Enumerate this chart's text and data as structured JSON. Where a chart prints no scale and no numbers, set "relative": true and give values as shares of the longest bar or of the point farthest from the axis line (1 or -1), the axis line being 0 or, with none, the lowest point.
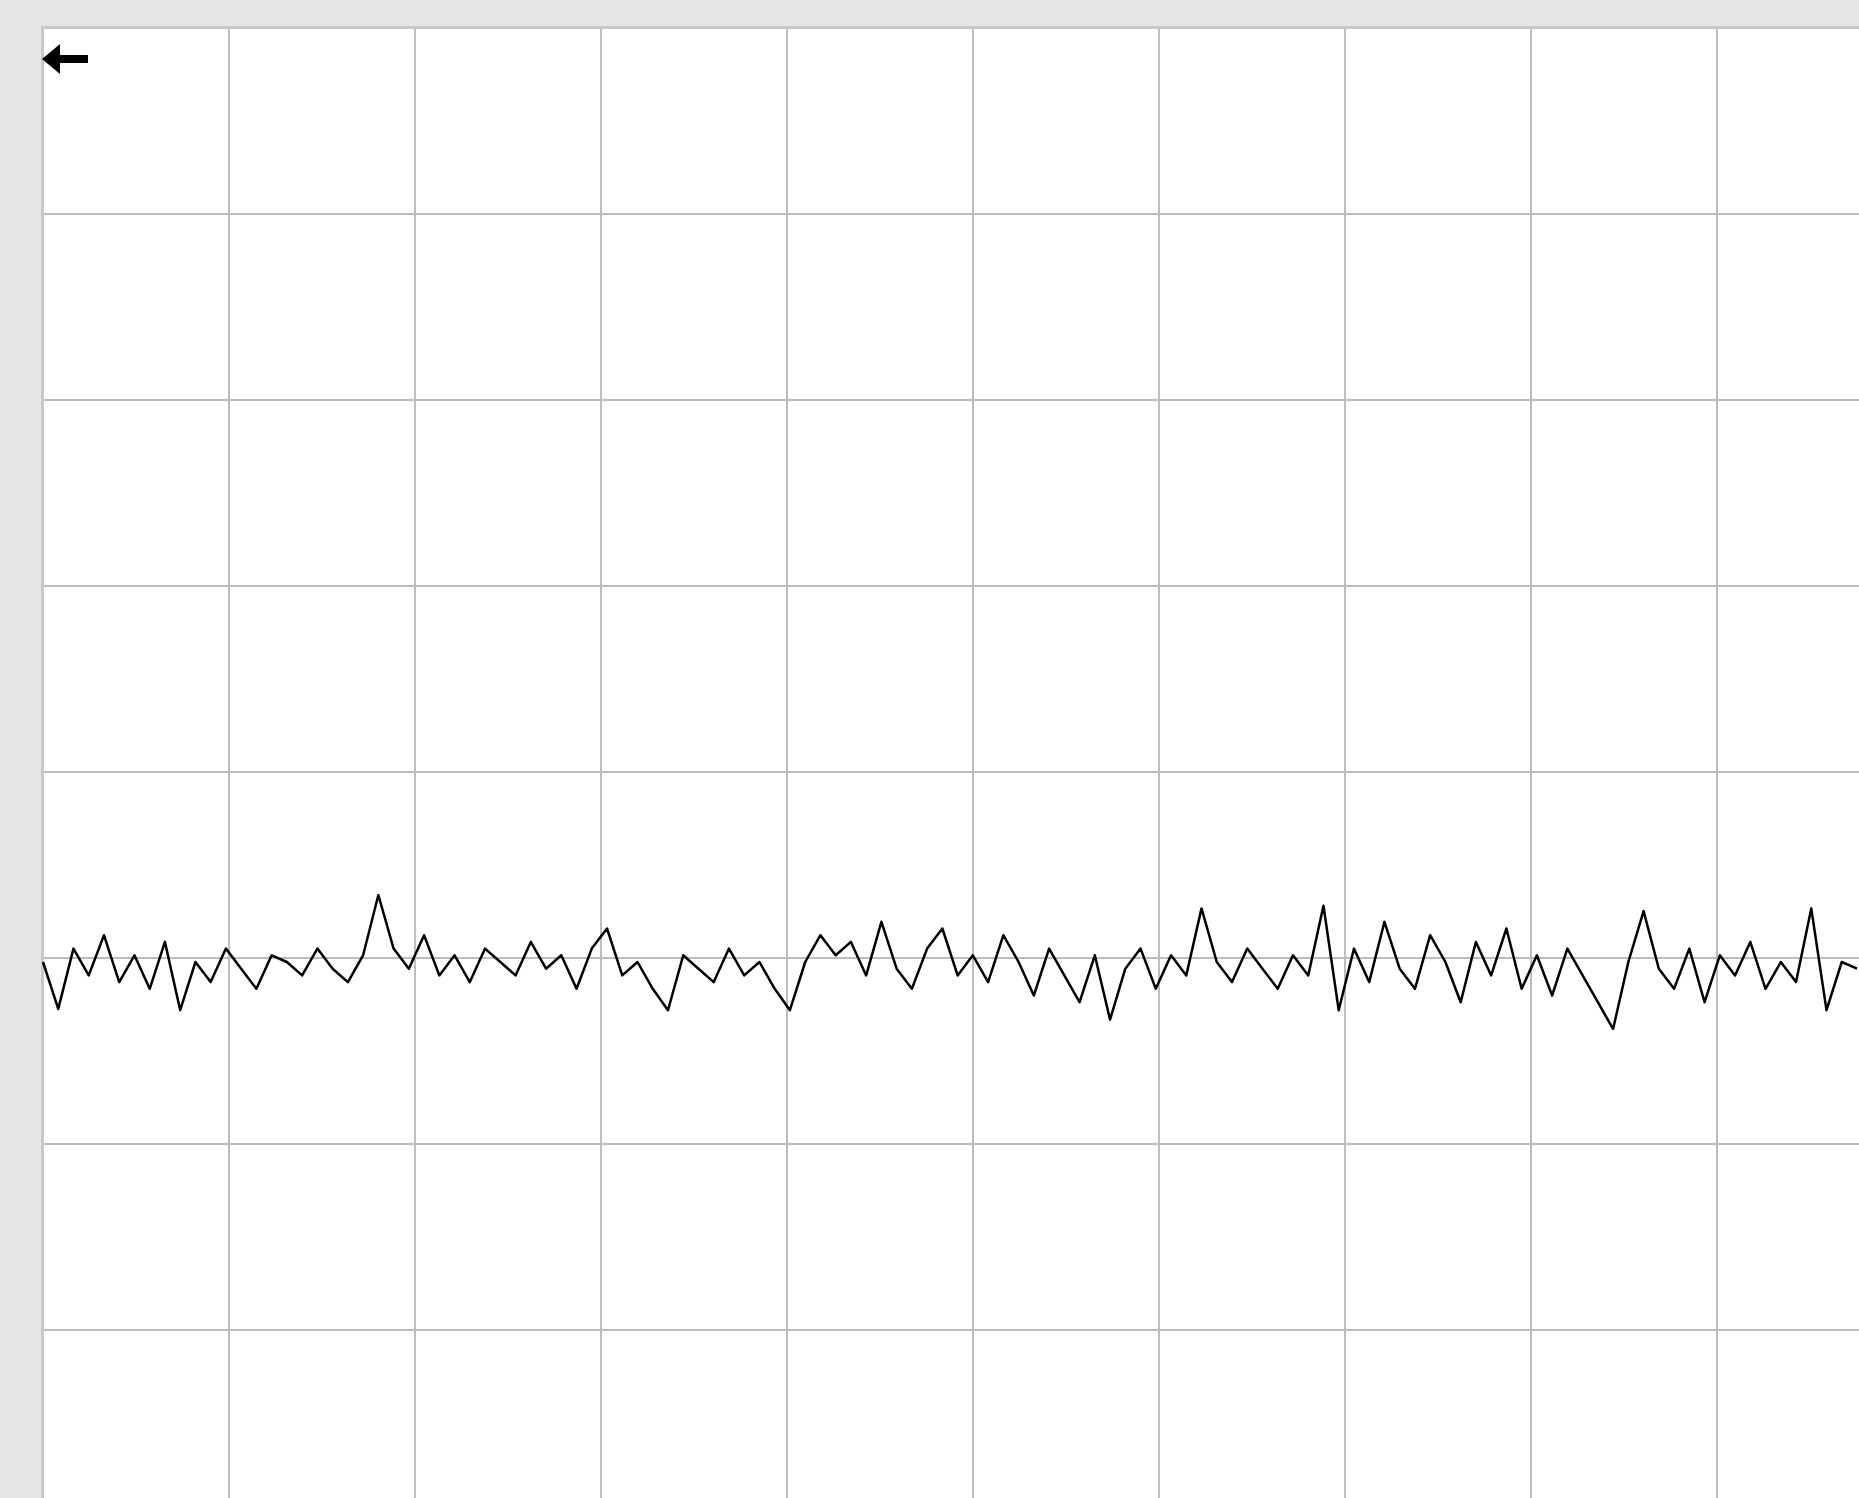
{
  "chart_data": {
    "type": "line",
    "relative": true,
    "legend": false,
    "marker": "none",
    "line_style": "solid",
    "categories": [
      null,
      null,
      null,
      null,
      null,
      null,
      null,
      null,
      null,
      null,
      null,
      null,
      null,
      null,
      null,
      null,
      null,
      null,
      null,
      null,
      null,
      null,
      null,
      null,
      null,
      null,
      null,
      null,
      null,
      null,
      null,
      null,
      null,
      null,
      null,
      null,
      null,
      null,
      null,
      null,
      null,
      null,
      null,
      null,
      null,
      null,
      null,
      null,
      null,
      null,
      null,
      null,
      null,
      null,
      null,
      null,
      null,
      null,
      null,
      null,
      null,
      null,
      null,
      null,
      null,
      null,
      null,
      null,
      null,
      null,
      null,
      null,
      null,
      null,
      null,
      null,
      null,
      null,
      null,
      null,
      null,
      null,
      null,
      null,
      null,
      null,
      null,
      null,
      null,
      null,
      null,
      null,
      null,
      null,
      null,
      null,
      null,
      null,
      null,
      null,
      null,
      null,
      null,
      null,
      null,
      null,
      null,
      null,
      null,
      null,
      null,
      null,
      null,
      null,
      null,
      null,
      null,
      null,
      null,
      null
    ],
    "series": [
      {
        "color": "#000000",
        "values": [
          0.5,
          0.15,
          0.6,
          0.4,
          0.7,
          0.35,
          0.55,
          0.3,
          0.65,
          0.14,
          0.5,
          0.35,
          0.6,
          0.45,
          0.3,
          0.55,
          0.5,
          0.4,
          0.6,
          0.45,
          0.35,
          0.55,
          1.0,
          0.6,
          0.45,
          0.7,
          0.4,
          0.55,
          0.35,
          0.6,
          0.5,
          0.4,
          0.65,
          0.45,
          0.55,
          0.3,
          0.6,
          0.75,
          0.4,
          0.5,
          0.3,
          0.14,
          0.55,
          0.45,
          0.35,
          0.6,
          0.4,
          0.5,
          0.3,
          0.14,
          0.5,
          0.7,
          0.55,
          0.65,
          0.4,
          0.8,
          0.45,
          0.3,
          0.6,
          0.75,
          0.4,
          0.55,
          0.35,
          0.7,
          0.5,
          0.25,
          0.6,
          0.4,
          0.2,
          0.55,
          0.07,
          0.45,
          0.6,
          0.3,
          0.55,
          0.4,
          0.9,
          0.5,
          0.35,
          0.6,
          0.45,
          0.3,
          0.55,
          0.4,
          0.92,
          0.14,
          0.6,
          0.35,
          0.8,
          0.45,
          0.3,
          0.7,
          0.5,
          0.2,
          0.65,
          0.4,
          0.75,
          0.3,
          0.55,
          0.25,
          0.6,
          0.4,
          0.2,
          0,
          0.5,
          0.88,
          0.45,
          0.3,
          0.6,
          0.2,
          0.55,
          0.4,
          0.65,
          0.3,
          0.5,
          0.35,
          0.9,
          0.14,
          0.5,
          0.45
        ]
      }
    ]
  }
}
